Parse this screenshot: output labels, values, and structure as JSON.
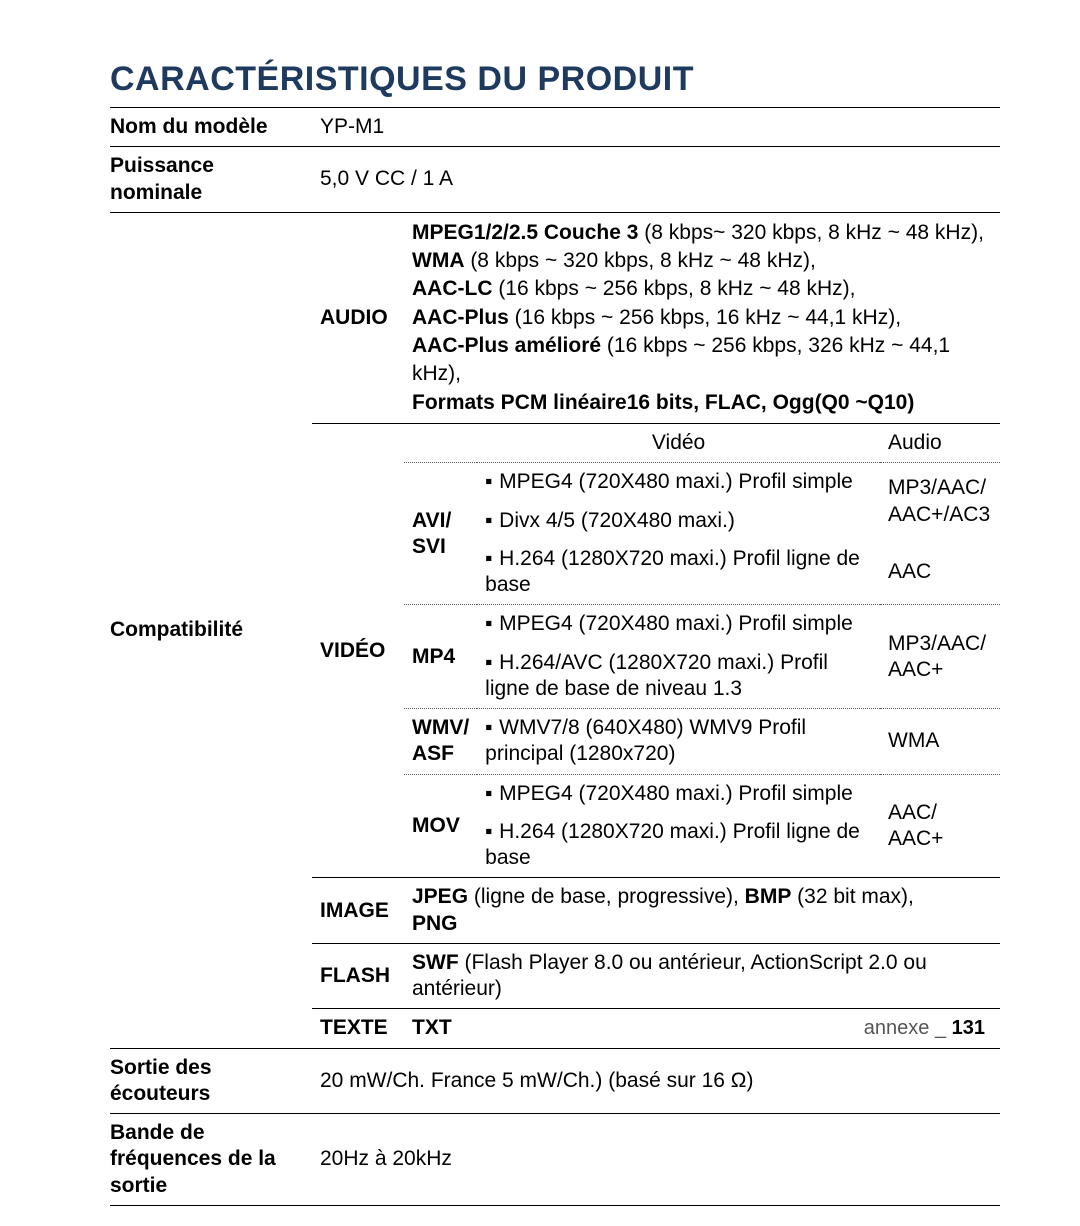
{
  "page": {
    "title": "CARACTÉRISTIQUES DU PRODUIT",
    "footer_label": "annexe",
    "footer_sep": "_",
    "footer_page": "131"
  },
  "rows": {
    "model": {
      "label": "Nom du modèle",
      "value": "YP-M1"
    },
    "power": {
      "label": "Puissance nominale",
      "value": "5,0 V CC / 1 A"
    },
    "compat": {
      "label": "Compatibilité"
    },
    "earphone": {
      "label": "Sortie des écouteurs",
      "value": "20 mW/Ch. France 5 mW/Ch.) (basé sur 16 Ω)"
    },
    "freq": {
      "label": "Bande de fréquences de la sortie",
      "value": "20Hz à 20kHz"
    }
  },
  "audio": {
    "cat": "AUDIO",
    "lines": {
      "l1b": "MPEG1/2/2.5 Couche 3",
      "l1": " (8 kbps~ 320 kbps, 8 kHz ~ 48 kHz),",
      "l2b": "WMA",
      "l2": " (8 kbps ~ 320 kbps, 8 kHz ~ 48 kHz),",
      "l3b": "AAC-LC",
      "l3": " (16 kbps ~ 256 kbps, 8 kHz ~ 48 kHz),",
      "l4b": "AAC-Plus",
      "l4": " (16 kbps ~ 256 kbps, 16 kHz ~ 44,1 kHz),",
      "l5b": "AAC-Plus amélioré",
      "l5": " (16 kbps ~ 256 kbps, 326 kHz ~ 44,1 kHz),",
      "l6b": "Formats PCM linéaire16 bits, FLAC, Ogg(Q0 ~Q10)"
    }
  },
  "video": {
    "cat": "VIDÉO",
    "hdr_v": "Vidéo",
    "hdr_a": "Audio",
    "bullet": "▪",
    "avi": {
      "fmt": "AVI/ SVI",
      "r1v": "MPEG4 (720X480 maxi.) Profil simple",
      "r2v": "Divx 4/5 (720X480 maxi.)",
      "r12a": "MP3/AAC/ AAC+/AC3",
      "r3v": "H.264 (1280X720 maxi.) Profil ligne de base",
      "r3a": "AAC"
    },
    "mp4": {
      "fmt": "MP4",
      "r1v": "MPEG4 (720X480 maxi.) Profil simple",
      "r2v": "H.264/AVC (1280X720 maxi.) Profil ligne de base de niveau 1.3",
      "r12a": "MP3/AAC/ AAC+"
    },
    "wmv": {
      "fmt": "WMV/ ASF",
      "r1v": "WMV7/8 (640X480) WMV9 Profil principal (1280x720)",
      "r1a": "WMA"
    },
    "mov": {
      "fmt": "MOV",
      "r1v": "MPEG4 (720X480 maxi.) Profil simple",
      "r2v": "H.264 (1280X720 maxi.) Profil ligne de base",
      "r12a": "AAC/ AAC+"
    }
  },
  "image": {
    "cat": "IMAGE",
    "b1": "JPEG",
    "t1": " (ligne de base, progressive), ",
    "b2": "BMP",
    "t2": " (32 bit max), ",
    "b3": "PNG"
  },
  "flash": {
    "cat": "FLASH",
    "b1": "SWF",
    "t1": " (Flash Player 8.0 ou antérieur, ActionScript 2.0 ou antérieur)"
  },
  "text": {
    "cat": "TEXTE",
    "val": "TXT"
  }
}
